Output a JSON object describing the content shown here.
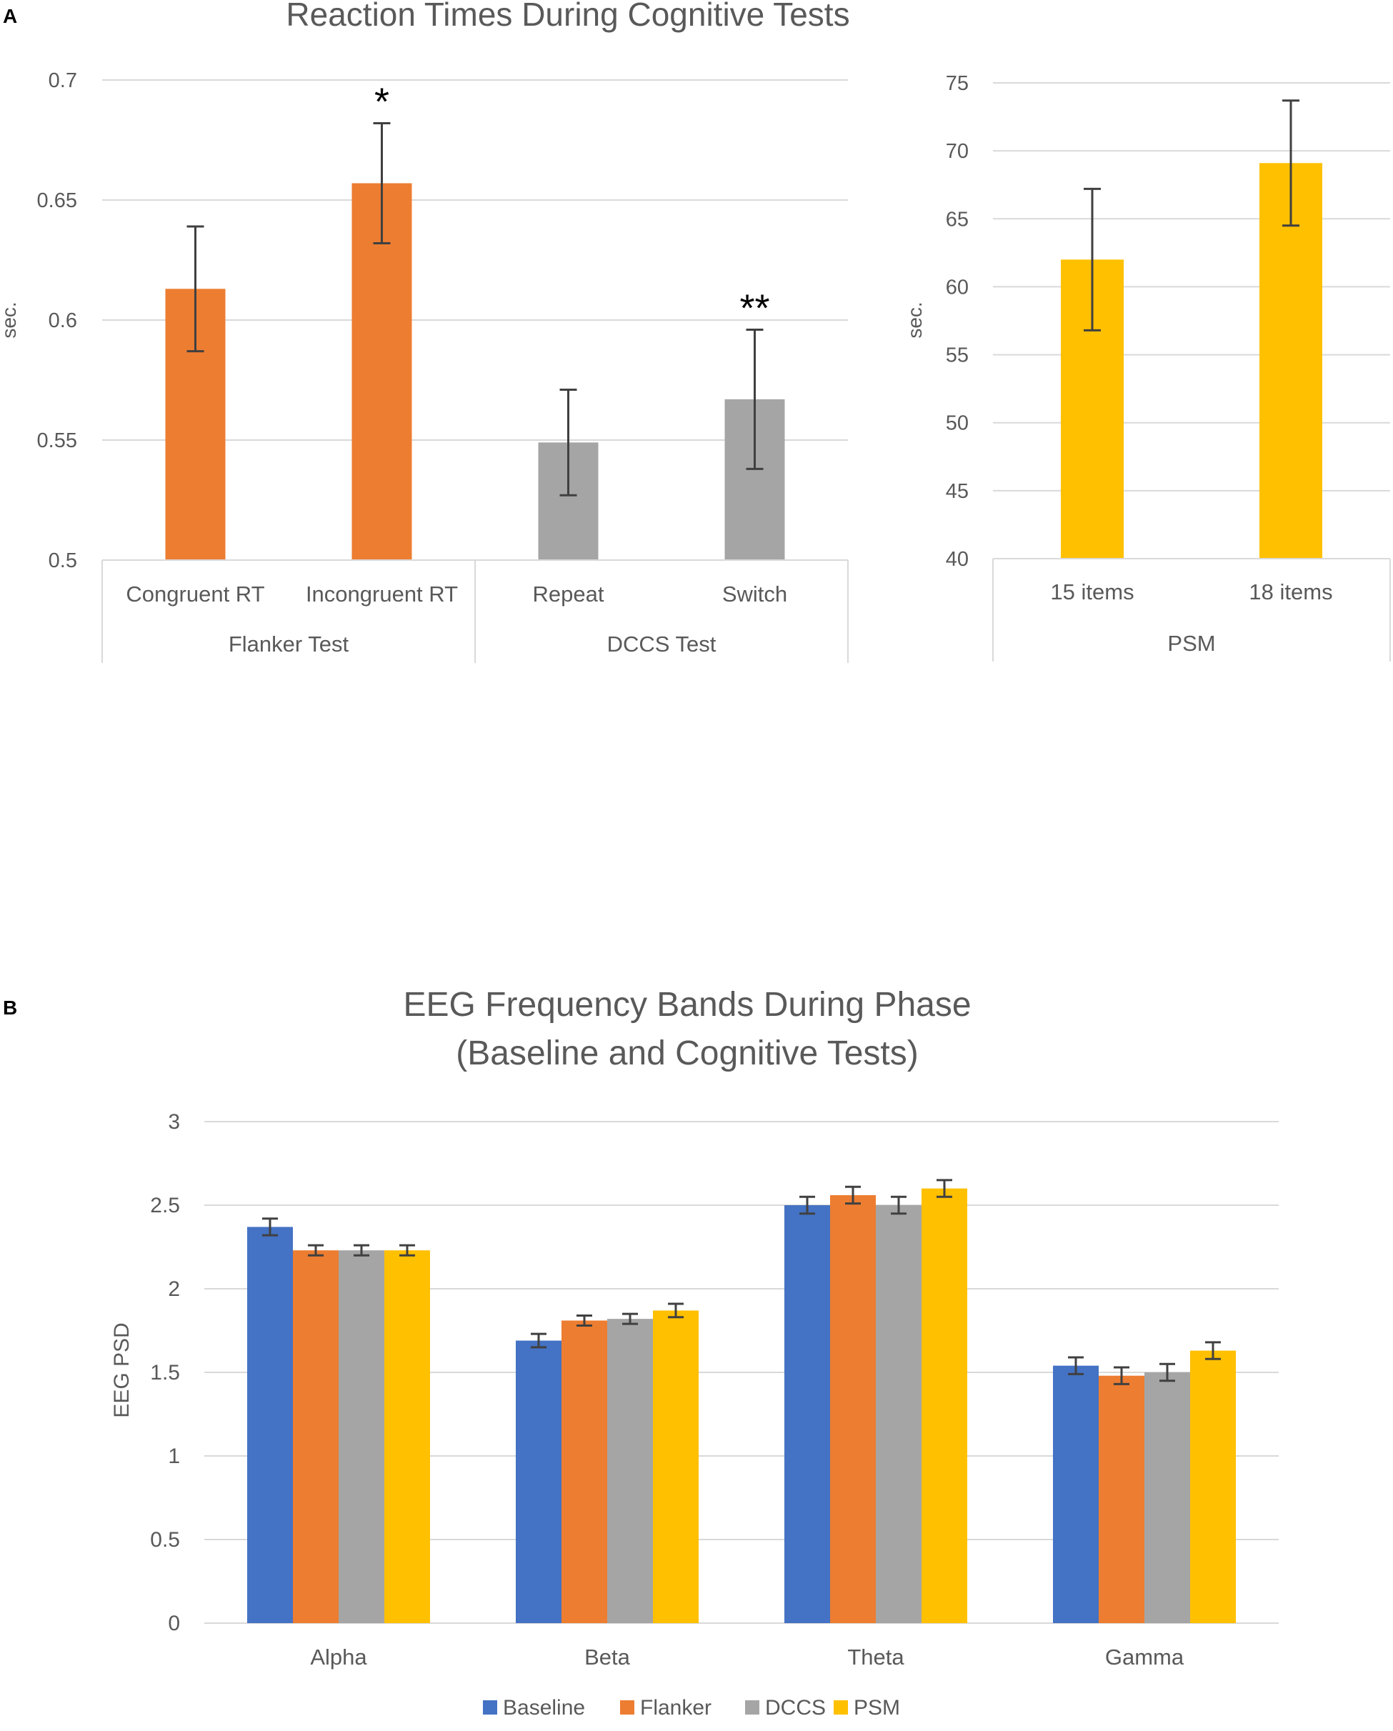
{
  "panels": {
    "a_label": "A",
    "b_label": "B"
  },
  "colors": {
    "orange": "#ED7D31",
    "gray": "#A5A5A5",
    "yellow": "#FFC000",
    "blue": "#4472C4",
    "grid": "#D9D9D9",
    "text": "#595959",
    "error": "#404040"
  },
  "chart_data": [
    {
      "type": "bar",
      "title": "Reaction Times During Cognitive Tests",
      "ylabel": "sec.",
      "ylim": [
        0.5,
        0.7
      ],
      "yticks": [
        "0.5",
        "0.55",
        "0.6",
        "0.65",
        "0.7"
      ],
      "categories": [
        "Congruent RT",
        "Incongruent RT",
        "Repeat",
        "Switch"
      ],
      "groups": [
        "Flanker Test",
        "Flanker Test",
        "DCCS Test",
        "DCCS Test"
      ],
      "group_labels": [
        "Flanker Test",
        "DCCS Test"
      ],
      "values": [
        0.613,
        0.657,
        0.549,
        0.567
      ],
      "errors": [
        0.026,
        0.025,
        0.022,
        0.029
      ],
      "bar_colors": [
        "#ED7D31",
        "#ED7D31",
        "#A5A5A5",
        "#A5A5A5"
      ],
      "annotations": [
        "",
        "*",
        "",
        "**"
      ]
    },
    {
      "type": "bar",
      "title": "",
      "ylabel": "sec.",
      "ylim": [
        40,
        75
      ],
      "yticks": [
        "40",
        "45",
        "50",
        "55",
        "60",
        "65",
        "70",
        "75"
      ],
      "categories": [
        "15 items",
        "18 items"
      ],
      "group_labels": [
        "PSM"
      ],
      "values": [
        62.0,
        69.1
      ],
      "errors": [
        5.2,
        4.6
      ],
      "bar_colors": [
        "#FFC000",
        "#FFC000"
      ]
    },
    {
      "type": "bar",
      "title_lines": [
        "EEG Frequency Bands During Phase",
        "(Baseline and Cognitive Tests)"
      ],
      "ylabel": "EEG PSD",
      "ylim": [
        0,
        3
      ],
      "yticks": [
        "0",
        "0.5",
        "1",
        "1.5",
        "2",
        "2.5",
        "3"
      ],
      "categories": [
        "Alpha",
        "Beta",
        "Theta",
        "Gamma"
      ],
      "series": [
        {
          "name": "Baseline",
          "color": "#4472C4",
          "values": [
            2.37,
            1.69,
            2.5,
            1.54
          ],
          "errors": [
            0.05,
            0.04,
            0.05,
            0.05
          ]
        },
        {
          "name": "Flanker",
          "color": "#ED7D31",
          "values": [
            2.23,
            1.81,
            2.56,
            1.48
          ],
          "errors": [
            0.03,
            0.03,
            0.05,
            0.05
          ]
        },
        {
          "name": "DCCS",
          "color": "#A5A5A5",
          "values": [
            2.23,
            1.82,
            2.5,
            1.5
          ],
          "errors": [
            0.03,
            0.03,
            0.05,
            0.05
          ]
        },
        {
          "name": "PSM",
          "color": "#FFC000",
          "values": [
            2.23,
            1.87,
            2.6,
            1.63
          ],
          "errors": [
            0.03,
            0.04,
            0.05,
            0.05
          ]
        }
      ],
      "legend_position": "bottom"
    }
  ]
}
